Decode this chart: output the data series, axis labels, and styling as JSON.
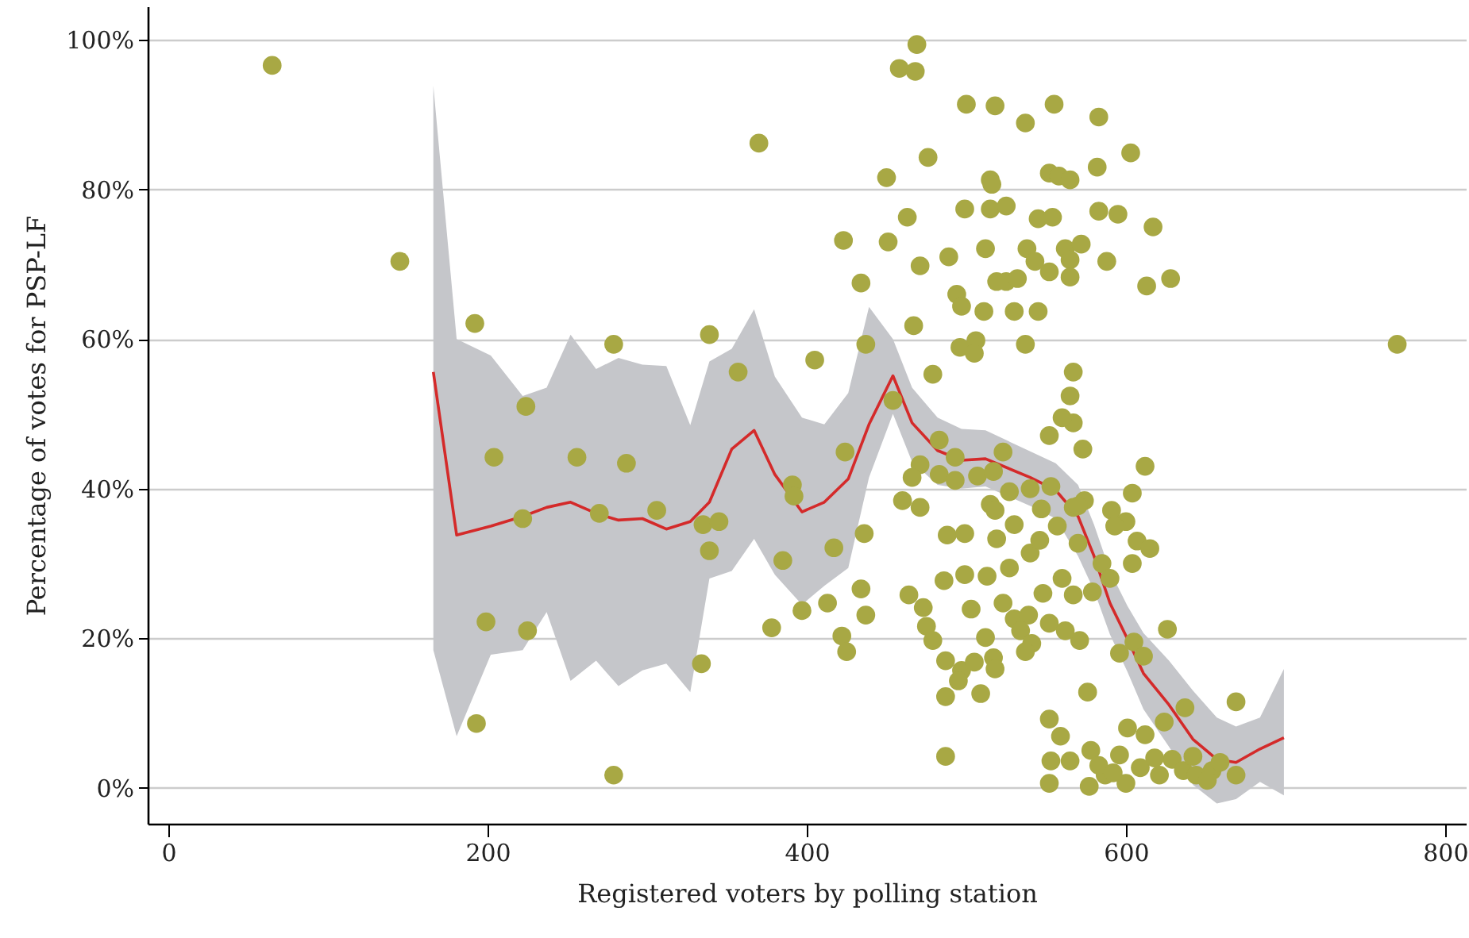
{
  "chart_data": {
    "type": "scatter",
    "xlabel": "Registered voters by polling station",
    "ylabel": "Percentage of votes for PSP-LF",
    "xlim": [
      -13,
      813
    ],
    "ylim": [
      -4.8,
      104.5
    ],
    "xticks": [
      0,
      200,
      400,
      600,
      800
    ],
    "yticks": [
      {
        "value": 0,
        "label": "0%"
      },
      {
        "value": 20,
        "label": "20%"
      },
      {
        "value": 40,
        "label": "40%"
      },
      {
        "value": 60,
        "label": "60%"
      },
      {
        "value": 80,
        "label": "80%"
      },
      {
        "value": 100,
        "label": "100%"
      }
    ],
    "grid": "y",
    "series": [
      {
        "marker": "circle",
        "color": "#a8a844",
        "x": [
          65,
          145,
          192,
          204,
          224,
          222,
          199,
          225,
          193,
          256,
          270,
          279,
          287,
          306,
          279,
          339,
          357,
          335,
          345,
          339,
          334,
          370,
          378,
          385,
          391,
          392,
          397,
          405,
          413,
          417,
          423,
          424,
          422,
          425,
          434,
          437,
          436,
          434,
          437,
          450,
          451,
          469,
          458,
          468,
          500,
          518,
          537,
          555,
          583,
          603,
          476,
          515,
          516,
          552,
          558,
          565,
          582,
          463,
          471,
          489,
          499,
          515,
          525,
          545,
          554,
          583,
          595,
          617,
          512,
          538,
          543,
          562,
          572,
          565,
          552,
          565,
          588,
          613,
          628,
          519,
          525,
          532,
          494,
          497,
          511,
          530,
          545,
          467,
          496,
          506,
          505,
          537,
          479,
          567,
          565,
          454,
          567,
          552,
          573,
          471,
          523,
          493,
          483,
          466,
          483,
          493,
          507,
          460,
          471,
          515,
          527,
          540,
          547,
          553,
          567,
          574,
          591,
          600,
          604,
          488,
          499,
          518,
          519,
          530,
          540,
          546,
          557,
          570,
          570,
          593,
          612,
          517,
          513,
          527,
          486,
          499,
          464,
          473,
          475,
          479,
          503,
          523,
          530,
          539,
          534,
          541,
          552,
          567,
          579,
          571,
          562,
          512,
          517,
          537,
          518,
          626,
          487,
          497,
          505,
          495,
          487,
          509,
          596,
          605,
          611,
          576,
          624,
          637,
          487,
          552,
          559,
          578,
          601,
          612,
          553,
          552,
          577,
          565,
          587,
          596,
          600,
          609,
          621,
          629,
          636,
          642,
          644,
          654,
          669,
          669,
          659,
          651,
          770,
          560,
          585,
          590,
          560,
          548,
          604,
          607,
          615,
          583,
          592,
          618
        ],
        "values": [
          96.6,
          70.4,
          62.1,
          44.2,
          51,
          36,
          22.2,
          21,
          8.6,
          44.2,
          36.7,
          59.3,
          43.4,
          37.1,
          1.7,
          60.6,
          55.6,
          35.2,
          35.6,
          31.7,
          16.6,
          86.2,
          21.4,
          30.4,
          40.5,
          39,
          23.7,
          57.2,
          24.7,
          32.1,
          73.2,
          44.9,
          20.3,
          18.2,
          67.5,
          59.3,
          34,
          26.6,
          23.1,
          81.6,
          73,
          99.4,
          96.2,
          95.8,
          91.4,
          91.2,
          88.9,
          91.4,
          89.7,
          84.9,
          84.3,
          81.3,
          80.7,
          82.2,
          81.8,
          81.3,
          83,
          76.3,
          69.8,
          71,
          77.4,
          77.4,
          77.8,
          76.1,
          76.3,
          77.1,
          76.7,
          75,
          72.1,
          72.1,
          70.4,
          72.1,
          72.7,
          70.6,
          69,
          68.3,
          70.4,
          67.1,
          68.1,
          67.7,
          67.7,
          68.1,
          66,
          64.4,
          63.7,
          63.7,
          63.7,
          61.8,
          58.9,
          59.8,
          58.1,
          59.3,
          55.3,
          55.6,
          52.4,
          51.8,
          48.8,
          47.1,
          45.3,
          43.2,
          44.9,
          44.2,
          46.5,
          41.5,
          41.9,
          41.1,
          41.7,
          38.4,
          37.5,
          37.9,
          39.6,
          40,
          37.3,
          40.3,
          37.5,
          38.4,
          37.1,
          35.6,
          39.4,
          33.8,
          34,
          37.1,
          33.3,
          35.2,
          31.4,
          33.1,
          35,
          37.7,
          32.7,
          35,
          43,
          42.3,
          28.3,
          29.4,
          27.7,
          28.5,
          25.8,
          24.1,
          21.6,
          19.7,
          23.9,
          24.7,
          22.6,
          23.1,
          21,
          19.3,
          22,
          25.8,
          26.2,
          19.7,
          21,
          20.1,
          17.4,
          18.2,
          15.9,
          21.2,
          17,
          15.7,
          16.8,
          14.3,
          12.2,
          12.6,
          18,
          19.5,
          17.6,
          12.8,
          8.8,
          10.7,
          4.2,
          9.2,
          6.9,
          5,
          8,
          7.1,
          3.6,
          0.6,
          0.2,
          3.6,
          1.7,
          4.4,
          0.6,
          2.7,
          1.7,
          3.8,
          2.3,
          4.2,
          1.7,
          2.3,
          11.5,
          1.7,
          3.4,
          1,
          59.3,
          49.5,
          30,
          28,
          28,
          26,
          30,
          33,
          32,
          3,
          2,
          4
        ]
      },
      {
        "type": "line",
        "color": "#d42a2a",
        "x": [
          166,
          180.6,
          202,
          222,
          237,
          252,
          268,
          282,
          297,
          312,
          327,
          339,
          353,
          367,
          380,
          397,
          411,
          426,
          439,
          454,
          466,
          482,
          497,
          512,
          540,
          556,
          570,
          580,
          590,
          601,
          611,
          627,
          642,
          657,
          669,
          684,
          699
        ],
        "values": [
          55.6,
          33.8,
          35,
          36.3,
          37.5,
          38.2,
          36.7,
          35.8,
          36,
          34.6,
          35.6,
          38.2,
          45.3,
          47.8,
          41.9,
          36.9,
          38.2,
          41.3,
          48.6,
          55.1,
          48.8,
          45.1,
          43.8,
          44,
          41.5,
          39.8,
          36.3,
          31,
          24.7,
          19.9,
          15.3,
          11.1,
          6.5,
          3.8,
          3.4,
          5.2,
          6.7
        ],
        "upper": [
          93.9,
          60,
          57.8,
          52.4,
          53.5,
          60.6,
          56,
          57.5,
          56.6,
          56.4,
          48.5,
          57,
          58.7,
          64,
          55,
          49.5,
          48.6,
          52.8,
          64.3,
          60,
          53.5,
          49.5,
          48,
          47.8,
          45,
          43.4,
          40.5,
          35.2,
          29,
          24.3,
          20.7,
          17,
          13,
          9.4,
          8.2,
          9.4,
          15.9
        ],
        "lower": [
          18.4,
          6.9,
          17.8,
          18.4,
          23.5,
          14.3,
          17,
          13.6,
          15.7,
          16.6,
          12.8,
          28,
          29,
          33.3,
          28.5,
          24.5,
          27,
          29.4,
          41.5,
          50,
          43.6,
          40.5,
          40,
          40.3,
          37.7,
          36,
          31,
          26.4,
          20.5,
          15.5,
          10.5,
          5.5,
          0.4,
          -2.1,
          -1.5,
          0.8,
          -1
        ]
      }
    ]
  }
}
